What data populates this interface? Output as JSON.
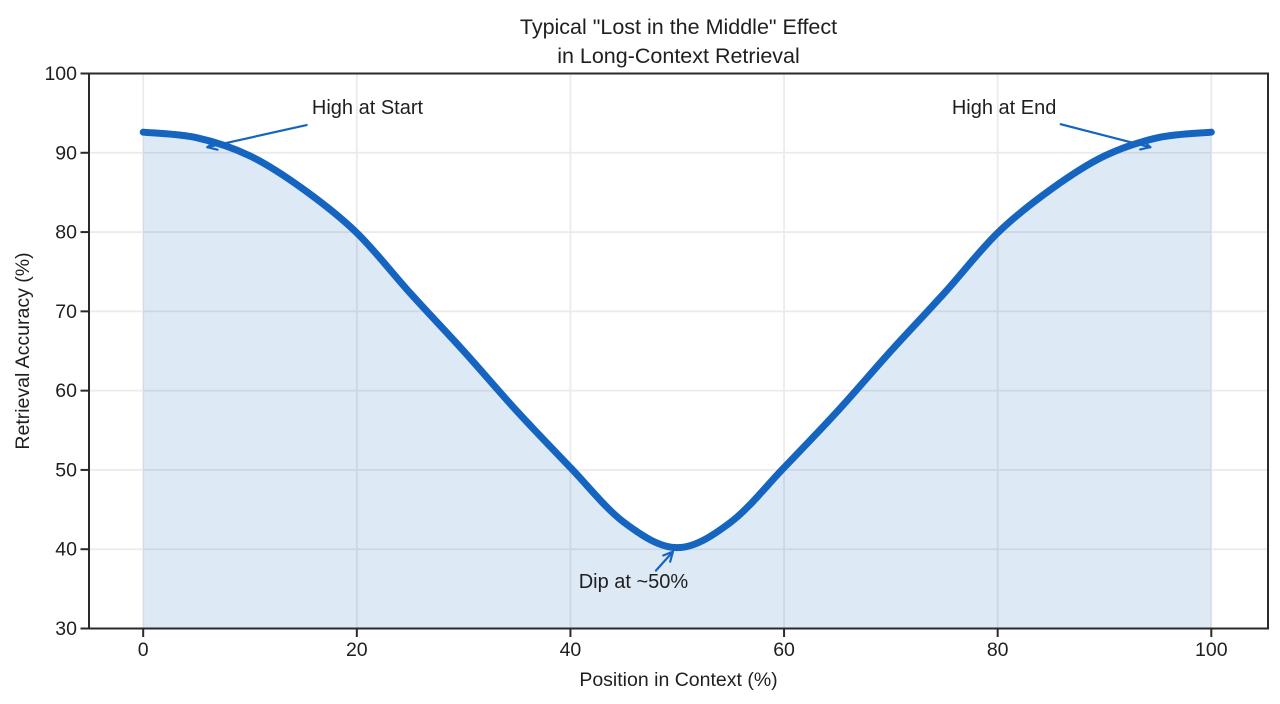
{
  "chart_data": {
    "type": "line",
    "title_lines": [
      "Typical \"Lost in the Middle\" Effect",
      "in Long-Context Retrieval"
    ],
    "xlabel": "Position in Context (%)",
    "ylabel": "Retrieval Accuracy (%)",
    "xlim": [
      -5.1,
      105.1
    ],
    "ylim": [
      30,
      100
    ],
    "xticks": [
      0,
      20,
      40,
      60,
      80,
      100
    ],
    "yticks": [
      30,
      40,
      50,
      60,
      70,
      80,
      90,
      100
    ],
    "grid": true,
    "legend": "none",
    "series": [
      {
        "name": "retrieval-accuracy",
        "x": [
          0,
          5,
          10,
          15,
          20,
          25,
          30,
          35,
          40,
          45,
          50,
          55,
          60,
          65,
          70,
          75,
          80,
          85,
          90,
          95,
          100
        ],
        "y": [
          92.6,
          91.9,
          89.6,
          85.4,
          79.9,
          72.3,
          65.0,
          57.4,
          50.3,
          43.4,
          40.2,
          43.4,
          50.3,
          57.4,
          65.0,
          72.3,
          79.9,
          85.4,
          89.6,
          91.9,
          92.6
        ],
        "area_fill": true
      }
    ],
    "annotations": [
      {
        "label": "High at Start",
        "text_at": [
          21.0,
          95.8
        ],
        "arrow_from": [
          15.3,
          93.5
        ],
        "arrow_to": [
          6.0,
          90.7
        ]
      },
      {
        "label": "High at End",
        "text_at": [
          80.6,
          95.8
        ],
        "arrow_from": [
          85.9,
          93.6
        ],
        "arrow_to": [
          94.3,
          90.7
        ]
      },
      {
        "label": "Dip at ~50%",
        "text_at": [
          45.9,
          36.0
        ],
        "arrow_from": [
          48.0,
          37.3
        ],
        "arrow_to": [
          49.6,
          39.7
        ]
      }
    ],
    "colors": {
      "line": "#1565c0",
      "fill": "#1565c0",
      "fill_opacity": 0.14,
      "grid": "#ebebeb",
      "spine": "#2a2a2a",
      "text": "#1f1f1f"
    }
  }
}
